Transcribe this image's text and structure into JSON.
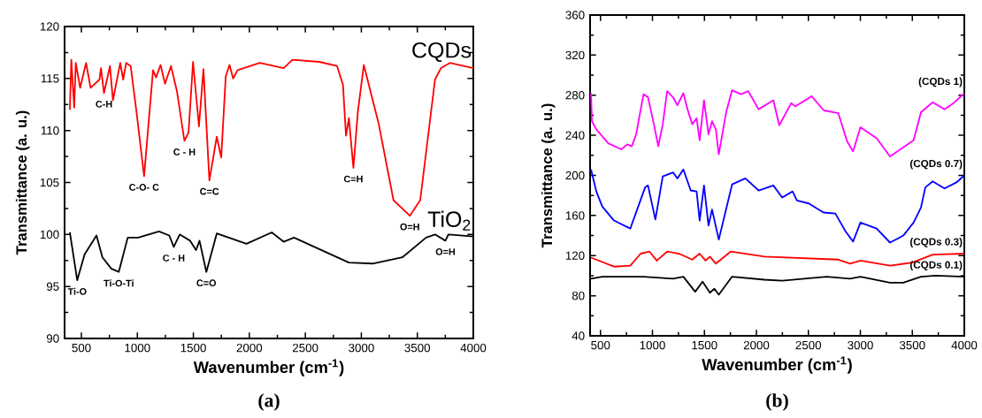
{
  "chart_data": [
    {
      "type": "line",
      "xlabel": "Wavenumber (cm$^{-1}$)",
      "ylabel": "Transmittance (a. u.)",
      "xlim": [
        350,
        4000
      ],
      "ylim": [
        90,
        120
      ],
      "xticks": [
        500,
        1000,
        1500,
        2000,
        2500,
        3000,
        3500,
        4000
      ],
      "yticks": [
        90,
        95,
        100,
        105,
        110,
        115,
        120
      ],
      "series": [
        {
          "color": "#ff0000",
          "x": [
            397,
            410,
            436,
            450,
            489,
            542,
            582,
            662,
            675,
            702,
            755,
            782,
            847,
            873,
            900,
            940,
            992,
            1060,
            1140,
            1167,
            1207,
            1247,
            1300,
            1353,
            1420,
            1457,
            1497,
            1550,
            1590,
            1643,
            1709,
            1749,
            1789,
            1823,
            1855,
            1895,
            2094,
            2306,
            2385,
            2624,
            2783,
            2836,
            2863,
            2889,
            2929,
            2969,
            3022,
            3154,
            3287,
            3433,
            3526,
            3658,
            3711,
            3791,
            4000
          ],
          "values": [
            112.0,
            116.8,
            112.2,
            116.5,
            114.1,
            116.5,
            114.1,
            114.9,
            116.0,
            113.6,
            116.2,
            112.9,
            116.5,
            114.9,
            116.5,
            116.2,
            111.8,
            105.6,
            115.8,
            115.1,
            116.3,
            114.5,
            116.2,
            113.8,
            109.0,
            109.8,
            116.6,
            110.4,
            115.9,
            105.2,
            109.4,
            107.4,
            115.2,
            116.3,
            115.0,
            115.8,
            116.5,
            116.0,
            116.8,
            116.6,
            116.2,
            114.4,
            109.5,
            111.2,
            106.4,
            111.8,
            116.3,
            110.7,
            103.3,
            101.8,
            103.3,
            114.9,
            116.0,
            116.5,
            116.0
          ]
        },
        {
          "color": "#000000",
          "x": [
            397,
            463,
            529,
            635,
            688,
            768,
            834,
            914,
            1007,
            1193,
            1285,
            1325,
            1378,
            1471,
            1524,
            1555,
            1616,
            1709,
            1974,
            2200,
            2306,
            2399,
            2624,
            2889,
            3101,
            3366,
            3578,
            3658,
            3751,
            3777,
            4000
          ],
          "values": [
            100.2,
            95.6,
            98.1,
            99.9,
            97.8,
            96.7,
            96.4,
            99.7,
            99.7,
            100.3,
            99.9,
            98.8,
            100.0,
            99.4,
            98.5,
            99.4,
            96.4,
            100.1,
            99.1,
            100.2,
            99.3,
            99.7,
            98.6,
            97.3,
            97.2,
            97.8,
            99.7,
            100.0,
            99.4,
            100.0,
            99.8
          ]
        }
      ],
      "annotations": [
        {
          "text": "CQDs",
          "x": 4000,
          "y": 116.0
        },
        {
          "text": "TiO$_{2}$",
          "x": 4000,
          "y": 99.8
        },
        {
          "text": "C-H",
          "x": 702,
          "y": 113.6
        },
        {
          "text": "C - H",
          "x": 1420,
          "y": 109.0
        },
        {
          "text": "C-O- C",
          "x": 1060,
          "y": 105.6
        },
        {
          "text": "C=C",
          "x": 1643,
          "y": 105.2
        },
        {
          "text": "C=H",
          "x": 2929,
          "y": 106.4
        },
        {
          "text": "O=H",
          "x": 3433,
          "y": 101.8
        },
        {
          "text": "Ti-O",
          "x": 463,
          "y": 95.6
        },
        {
          "text": "Ti-O-Ti",
          "x": 834,
          "y": 96.4
        },
        {
          "text": "C - H",
          "x": 1325,
          "y": 98.8
        },
        {
          "text": "C=O",
          "x": 1616,
          "y": 96.4
        },
        {
          "text": "O=H",
          "x": 3751,
          "y": 99.4
        },
        "(a)"
      ]
    },
    {
      "type": "line",
      "xlabel": "Wavenumber (cm$^{-1}$)",
      "ylabel": "Transmittance (a. u.)",
      "xlim": [
        400,
        4000
      ],
      "ylim": [
        40,
        360
      ],
      "xticks": [
        500,
        1000,
        1500,
        2000,
        2500,
        3000,
        3500,
        4000
      ],
      "yticks": [
        40,
        80,
        120,
        160,
        200,
        240,
        280,
        320,
        360
      ],
      "series": [
        {
          "color": "#ff00ff",
          "x": [
            409,
            418,
            460,
            574,
            701,
            758,
            801,
            843,
            914,
            957,
            1014,
            1056,
            1099,
            1141,
            1198,
            1240,
            1297,
            1340,
            1383,
            1425,
            1454,
            1496,
            1539,
            1573,
            1610,
            1638,
            1709,
            1766,
            1851,
            1922,
            2021,
            2163,
            2220,
            2334,
            2376,
            2532,
            2646,
            2788,
            2873,
            2930,
            3001,
            3157,
            3285,
            3413,
            3512,
            3583,
            3696,
            3810,
            3895,
            4000
          ],
          "values": [
            282,
            254,
            246,
            232,
            226,
            231,
            229,
            241,
            281,
            278,
            251,
            229,
            251,
            284,
            278,
            270,
            282,
            265,
            251,
            257,
            235,
            275,
            241,
            254,
            246,
            221,
            263,
            285,
            281,
            284,
            266,
            275,
            250,
            272,
            269,
            279,
            265,
            262,
            234,
            224,
            248,
            237,
            219,
            228,
            235,
            263,
            273,
            266,
            272,
            282
          ]
        },
        {
          "color": "#0000ff",
          "x": [
            409,
            460,
            517,
            630,
            787,
            929,
            957,
            1028,
            1099,
            1198,
            1240,
            1297,
            1368,
            1425,
            1454,
            1496,
            1539,
            1573,
            1638,
            1766,
            1894,
            2021,
            2163,
            2248,
            2348,
            2390,
            2504,
            2646,
            2759,
            2859,
            2930,
            3001,
            3157,
            3285,
            3413,
            3512,
            3583,
            3625,
            3696,
            3810,
            3924,
            4000
          ],
          "values": [
            206,
            184,
            169,
            155,
            147,
            188,
            190,
            156,
            199,
            203,
            197,
            206,
            185,
            184,
            155,
            190,
            150,
            166,
            136,
            191,
            197,
            185,
            190,
            178,
            184,
            175,
            172,
            163,
            162,
            144,
            134,
            153,
            147,
            133,
            140,
            153,
            168,
            188,
            194,
            187,
            193,
            200
          ]
        },
        {
          "color": "#ff0000",
          "x": [
            409,
            630,
            787,
            886,
            971,
            1042,
            1141,
            1255,
            1383,
            1454,
            1511,
            1553,
            1610,
            1752,
            2078,
            2788,
            2901,
            3001,
            3285,
            3498,
            3696,
            4000
          ],
          "values": [
            118,
            109,
            110,
            122,
            124,
            115,
            124,
            122,
            116,
            122,
            115,
            119,
            112,
            124,
            119,
            116,
            112,
            115,
            110,
            113,
            121,
            122
          ]
        },
        {
          "color": "#000000",
          "x": [
            409,
            517,
            914,
            1198,
            1297,
            1411,
            1482,
            1553,
            1596,
            1638,
            1766,
            2078,
            2248,
            2674,
            2901,
            3001,
            3285,
            3413,
            3583,
            3725,
            4000
          ],
          "values": [
            97,
            99,
            99,
            97,
            99,
            84,
            94,
            83,
            87,
            81,
            99,
            96,
            95,
            99,
            97,
            99,
            93,
            93,
            99,
            100,
            99
          ]
        }
      ],
      "annotations": [
        {
          "text": "(CQDs 1)",
          "x": 4000,
          "y": 282
        },
        {
          "text": "(CQDs 0.7)",
          "x": 4000,
          "y": 200
        },
        {
          "text": "(CQDs 0.3)",
          "x": 4000,
          "y": 122
        },
        {
          "text": "(CQDs 0.1)",
          "x": 4000,
          "y": 99
        },
        "(b)"
      ]
    }
  ]
}
